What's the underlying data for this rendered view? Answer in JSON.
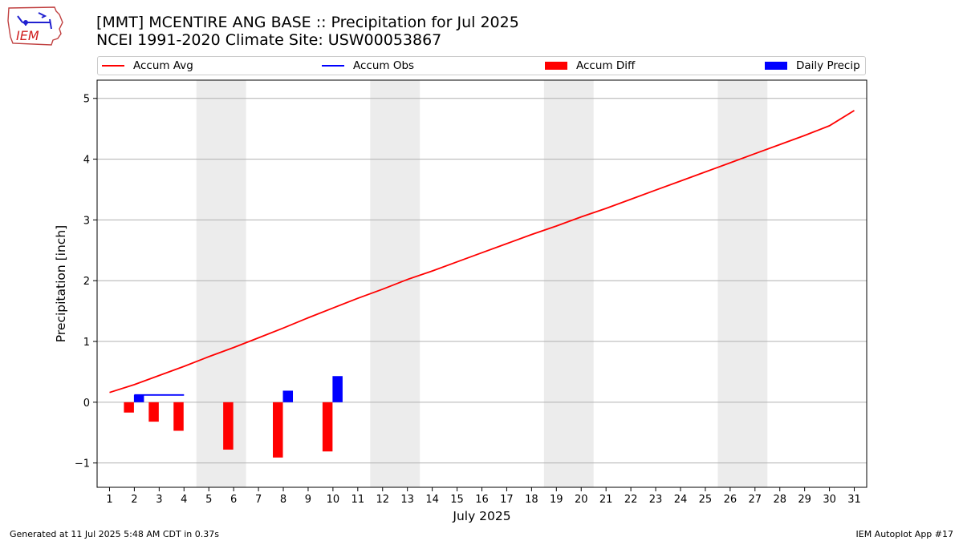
{
  "header": {
    "title_line1": "[MMT] MCENTIRE ANG BASE :: Precipitation for Jul 2025",
    "title_line2": "NCEI 1991-2020 Climate Site: USW00053867",
    "logo_text": "IEM"
  },
  "footer": {
    "generated": "Generated at 11 Jul 2025 5:48 AM CDT in 0.37s",
    "app": "IEM Autoplot App #17"
  },
  "colors": {
    "accum_avg": "#ff0000",
    "accum_obs": "#0000ff",
    "accum_diff": "#ff0000",
    "daily_precip": "#0000ff",
    "weekend_shade": "#ececec",
    "grid": "#b0b0b0"
  },
  "chart_data": {
    "type": "line",
    "xlabel": "July 2025",
    "ylabel": "Precipitation [inch]",
    "xlim": [
      0.5,
      31.5
    ],
    "ylim": [
      -1.4,
      5.3
    ],
    "grid": true,
    "legend_position": "top",
    "legend": [
      "Accum Avg",
      "Accum Obs",
      "Accum Diff",
      "Daily Precip"
    ],
    "x_ticks": [
      1,
      2,
      3,
      4,
      5,
      6,
      7,
      8,
      9,
      10,
      11,
      12,
      13,
      14,
      15,
      16,
      17,
      18,
      19,
      20,
      21,
      22,
      23,
      24,
      25,
      26,
      27,
      28,
      29,
      30,
      31
    ],
    "y_ticks": [
      -1,
      0,
      1,
      2,
      3,
      4,
      5
    ],
    "y_tick_labels": [
      "−1",
      "0",
      "1",
      "2",
      "3",
      "4",
      "5"
    ],
    "weekend_spans": [
      [
        4.5,
        6.5
      ],
      [
        11.5,
        13.5
      ],
      [
        18.5,
        20.5
      ],
      [
        25.5,
        27.5
      ]
    ],
    "series": [
      {
        "name": "Accum Avg",
        "kind": "line",
        "x": [
          1,
          2,
          3,
          4,
          5,
          6,
          7,
          8,
          9,
          10,
          11,
          12,
          13,
          14,
          15,
          16,
          17,
          18,
          19,
          20,
          21,
          22,
          23,
          24,
          25,
          26,
          27,
          28,
          29,
          30,
          31
        ],
        "values": [
          0.16,
          0.29,
          0.44,
          0.59,
          0.75,
          0.9,
          1.06,
          1.22,
          1.39,
          1.55,
          1.71,
          1.86,
          2.02,
          2.16,
          2.31,
          2.46,
          2.61,
          2.76,
          2.9,
          3.05,
          3.19,
          3.34,
          3.49,
          3.64,
          3.79,
          3.94,
          4.09,
          4.24,
          4.39,
          4.55,
          4.8
        ]
      },
      {
        "name": "Accum Obs",
        "kind": "line",
        "x": [
          2,
          3,
          4
        ],
        "values": [
          0.12,
          0.12,
          0.12
        ]
      },
      {
        "name": "Accum Diff",
        "kind": "bar",
        "x": [
          2,
          3,
          4,
          6,
          8,
          10
        ],
        "values": [
          -0.17,
          -0.32,
          -0.47,
          -0.78,
          -0.91,
          -0.81
        ]
      },
      {
        "name": "Daily Precip",
        "kind": "bar",
        "x": [
          2,
          8,
          10
        ],
        "values": [
          0.12,
          0.19,
          0.43
        ]
      }
    ]
  }
}
